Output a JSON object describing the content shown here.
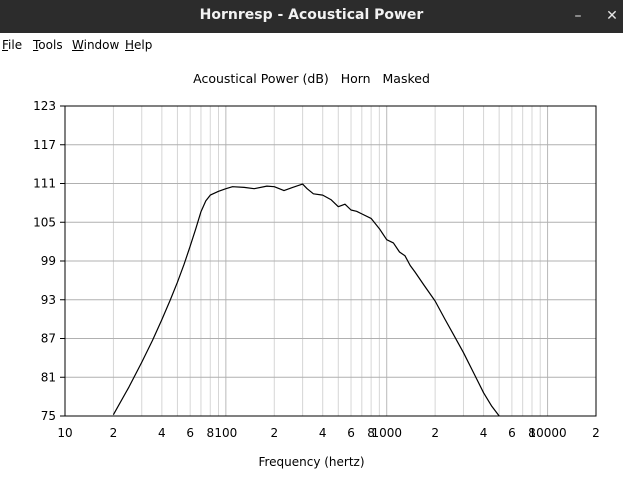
{
  "window": {
    "title": "Hornresp - Acoustical Power",
    "minimize_glyph": "–",
    "close_glyph": "✕"
  },
  "menu": [
    {
      "label": "File",
      "key": "F"
    },
    {
      "label": "Tools",
      "key": "T"
    },
    {
      "label": "Window",
      "key": "W"
    },
    {
      "label": "Help",
      "key": "H"
    }
  ],
  "chart_data": {
    "type": "line",
    "title": "Acoustical Power (dB)   Horn   Masked",
    "xlabel": "Frequency (hertz)",
    "ylabel": "",
    "xscale": "log",
    "xlim": [
      10,
      20000
    ],
    "ylim": [
      75,
      123
    ],
    "yticks": [
      123,
      117,
      111,
      105,
      99,
      93,
      87,
      81,
      75
    ],
    "xtick_labels": [
      {
        "v": 10,
        "t": "10"
      },
      {
        "v": 20,
        "t": "2"
      },
      {
        "v": 40,
        "t": "4"
      },
      {
        "v": 60,
        "t": "6"
      },
      {
        "v": 80,
        "t": "8"
      },
      {
        "v": 100,
        "t": "100"
      },
      {
        "v": 200,
        "t": "2"
      },
      {
        "v": 400,
        "t": "4"
      },
      {
        "v": 600,
        "t": "6"
      },
      {
        "v": 800,
        "t": "8"
      },
      {
        "v": 1000,
        "t": "1000"
      },
      {
        "v": 2000,
        "t": "2"
      },
      {
        "v": 4000,
        "t": "4"
      },
      {
        "v": 6000,
        "t": "6"
      },
      {
        "v": 8000,
        "t": "8"
      },
      {
        "v": 10000,
        "t": "10000"
      },
      {
        "v": 20000,
        "t": "2"
      }
    ],
    "grid": true,
    "series": [
      {
        "color": "#000000",
        "x": [
          20,
          25,
          30,
          35,
          40,
          45,
          50,
          55,
          60,
          65,
          70,
          75,
          80,
          90,
          100,
          110,
          130,
          150,
          180,
          200,
          230,
          260,
          300,
          320,
          350,
          400,
          450,
          500,
          550,
          600,
          650,
          700,
          800,
          900,
          1000,
          1100,
          1200,
          1300,
          1400,
          1500,
          1700,
          2000,
          2300,
          2600,
          3000,
          3500,
          4000,
          4500,
          5000
        ],
        "y": [
          75.2,
          79.5,
          83.3,
          86.7,
          89.9,
          92.9,
          95.7,
          98.5,
          101.3,
          104.0,
          106.6,
          108.3,
          109.2,
          109.8,
          110.2,
          110.5,
          110.4,
          110.2,
          110.6,
          110.5,
          109.9,
          110.4,
          110.9,
          110.2,
          109.4,
          109.2,
          108.5,
          107.4,
          107.8,
          106.9,
          106.7,
          106.3,
          105.6,
          104.0,
          102.3,
          101.8,
          100.4,
          99.8,
          98.3,
          97.3,
          95.3,
          92.8,
          90.0,
          87.6,
          84.8,
          81.5,
          78.6,
          76.5,
          75.0
        ]
      }
    ]
  }
}
